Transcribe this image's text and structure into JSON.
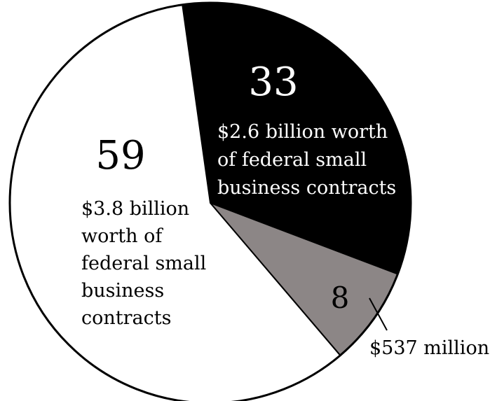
{
  "chart_data": {
    "type": "pie",
    "title": "",
    "slices": [
      {
        "key": "black",
        "value": 33,
        "value_label": "33",
        "amount_label_lines": [
          "$2.6 billion worth",
          "of federal small",
          "business contracts"
        ],
        "color": "#000000",
        "text_color": "#ffffff"
      },
      {
        "key": "gray",
        "value": 8,
        "value_label": "8",
        "amount_label_lines": [
          "$537 million"
        ],
        "color": "#8c8686",
        "text_color": "#000000"
      },
      {
        "key": "white",
        "value": 59,
        "value_label": "59",
        "amount_label_lines": [
          "$3.8 billion",
          "worth of",
          "federal small",
          "business",
          "contracts"
        ],
        "color": "#ffffff",
        "text_color": "#000000"
      }
    ],
    "start_angle_deg": -8,
    "direction": "clockwise",
    "border_color": "#000000",
    "legend": "none",
    "grid": false
  }
}
